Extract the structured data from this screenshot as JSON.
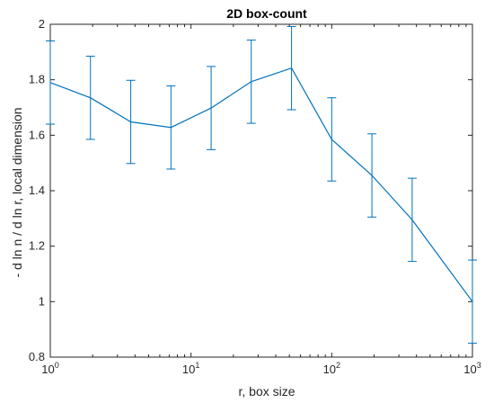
{
  "chart_data": {
    "type": "line",
    "title": "2D box-count",
    "xlabel": "r, box size",
    "ylabel": "- d ln n / d ln r, local dimension",
    "xscale": "log",
    "xlim": [
      1,
      1000
    ],
    "ylim": [
      0.8,
      2
    ],
    "x": [
      1,
      1.93,
      3.73,
      7.2,
      13.9,
      26.8,
      51.8,
      100,
      193,
      373,
      1000
    ],
    "series": [
      {
        "values": [
          1.79,
          1.735,
          1.648,
          1.628,
          1.698,
          1.793,
          1.842,
          1.585,
          1.455,
          1.295,
          1.0
        ],
        "errors": [
          0.15,
          0.15,
          0.15,
          0.15,
          0.15,
          0.15,
          0.15,
          0.15,
          0.15,
          0.15,
          0.15
        ],
        "color": "#0072BD"
      }
    ],
    "yticks": [
      {
        "value": 0.8,
        "label": "0.8"
      },
      {
        "value": 1.0,
        "label": "1"
      },
      {
        "value": 1.2,
        "label": "1.2"
      },
      {
        "value": 1.4,
        "label": "1.4"
      },
      {
        "value": 1.6,
        "label": "1.6"
      },
      {
        "value": 1.8,
        "label": "1.8"
      },
      {
        "value": 2.0,
        "label": "2"
      }
    ],
    "xticks": [
      {
        "value": 1,
        "base": "10",
        "exp": "0"
      },
      {
        "value": 10,
        "base": "10",
        "exp": "1"
      },
      {
        "value": 100,
        "base": "10",
        "exp": "2"
      },
      {
        "value": 1000,
        "base": "10",
        "exp": "3"
      }
    ],
    "grid": false,
    "box": true
  }
}
